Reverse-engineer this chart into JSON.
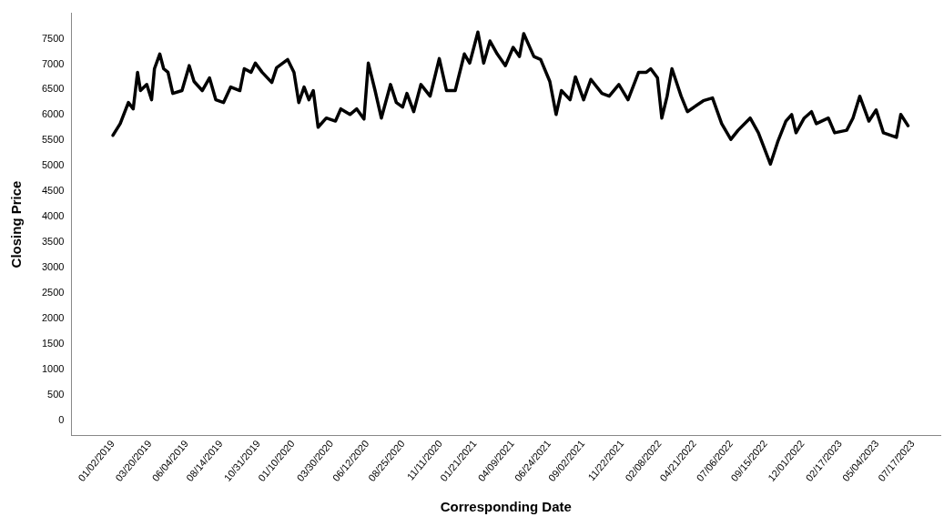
{
  "chart_data": {
    "type": "line",
    "xlabel": "Corresponding Date",
    "ylabel": "Closing Price",
    "xlim": [
      "2018-10-08",
      "2023-09-12"
    ],
    "xticks": [
      {
        "value": "2019-01-02",
        "label": "01/02/2019"
      },
      {
        "value": "2019-03-20",
        "label": "03/20/2019"
      },
      {
        "value": "2019-06-04",
        "label": "06/04/2019"
      },
      {
        "value": "2019-08-14",
        "label": "08/14/2019"
      },
      {
        "value": "2019-10-31",
        "label": "10/31/2019"
      },
      {
        "value": "2020-01-10",
        "label": "01/10/2020"
      },
      {
        "value": "2020-03-30",
        "label": "03/30/2020"
      },
      {
        "value": "2020-06-12",
        "label": "06/12/2020"
      },
      {
        "value": "2020-08-25",
        "label": "08/25/2020"
      },
      {
        "value": "2020-11-11",
        "label": "11/11/2020"
      },
      {
        "value": "2021-01-21",
        "label": "01/21/2021"
      },
      {
        "value": "2021-04-09",
        "label": "04/09/2021"
      },
      {
        "value": "2021-06-24",
        "label": "06/24/2021"
      },
      {
        "value": "2021-09-02",
        "label": "09/02/2021"
      },
      {
        "value": "2021-11-22",
        "label": "11/22/2021"
      },
      {
        "value": "2022-02-08",
        "label": "02/08/2022"
      },
      {
        "value": "2022-04-21",
        "label": "04/21/2022"
      },
      {
        "value": "2022-07-06",
        "label": "07/06/2022"
      },
      {
        "value": "2022-09-15",
        "label": "09/15/2022"
      },
      {
        "value": "2022-12-01",
        "label": "12/01/2022"
      },
      {
        "value": "2023-02-17",
        "label": "02/17/2023"
      },
      {
        "value": "2023-05-04",
        "label": "05/04/2023"
      },
      {
        "value": "2023-07-17",
        "label": "07/17/2023"
      }
    ],
    "ylim": [
      -300,
      8000
    ],
    "yticks": [
      0,
      500,
      1000,
      1500,
      2000,
      2500,
      3000,
      3500,
      4000,
      4500,
      5000,
      5500,
      6000,
      6500,
      7000,
      7500
    ],
    "grid": false,
    "legend": false,
    "marker": "none",
    "line_style": "solid",
    "series": [
      {
        "color": "#000000",
        "x": [
          "2019-01-02",
          "2019-01-17",
          "2019-02-03",
          "2019-02-13",
          "2019-02-22",
          "2019-02-28",
          "2019-03-13",
          "2019-03-23",
          "2019-03-29",
          "2019-04-09",
          "2019-04-17",
          "2019-04-26",
          "2019-05-06",
          "2019-05-25",
          "2019-06-09",
          "2019-06-19",
          "2019-07-06",
          "2019-07-21",
          "2019-08-03",
          "2019-08-19",
          "2019-09-03",
          "2019-09-22",
          "2019-10-01",
          "2019-10-15",
          "2019-10-24",
          "2019-11-07",
          "2019-11-27",
          "2019-12-07",
          "2019-12-30",
          "2020-01-12",
          "2020-01-22",
          "2020-02-02",
          "2020-02-12",
          "2020-02-21",
          "2020-03-02",
          "2020-03-19",
          "2020-04-07",
          "2020-04-18",
          "2020-05-07",
          "2020-05-21",
          "2020-06-05",
          "2020-06-14",
          "2020-06-28",
          "2020-07-11",
          "2020-07-30",
          "2020-08-11",
          "2020-08-24",
          "2020-09-02",
          "2020-09-16",
          "2020-10-01",
          "2020-10-20",
          "2020-11-08",
          "2020-11-23",
          "2020-12-11",
          "2020-12-30",
          "2021-01-10",
          "2021-01-27",
          "2021-02-08",
          "2021-02-21",
          "2021-03-08",
          "2021-03-25",
          "2021-04-10",
          "2021-04-23",
          "2021-05-02",
          "2021-05-23",
          "2021-06-06",
          "2021-06-25",
          "2021-07-08",
          "2021-07-19",
          "2021-08-06",
          "2021-08-17",
          "2021-09-03",
          "2021-09-18",
          "2021-10-11",
          "2021-10-26",
          "2021-11-15",
          "2021-12-04",
          "2021-12-26",
          "2022-01-11",
          "2022-01-20",
          "2022-02-03",
          "2022-02-12",
          "2022-02-23",
          "2022-03-05",
          "2022-03-24",
          "2022-04-06",
          "2022-05-09",
          "2022-05-28",
          "2022-06-16",
          "2022-07-05",
          "2022-07-20",
          "2022-08-14",
          "2022-08-31",
          "2022-09-25",
          "2022-10-10",
          "2022-10-27",
          "2022-11-08",
          "2022-11-17",
          "2022-12-04",
          "2022-12-19",
          "2022-12-29",
          "2023-01-23",
          "2023-02-05",
          "2023-03-02",
          "2023-03-15",
          "2023-03-29",
          "2023-04-17",
          "2023-05-02",
          "2023-05-17",
          "2023-06-13",
          "2023-06-22",
          "2023-07-07"
        ],
        "values": [
          5600,
          5830,
          6245,
          6120,
          6840,
          6480,
          6600,
          6300,
          6910,
          7200,
          6910,
          6840,
          6425,
          6480,
          6970,
          6660,
          6480,
          6730,
          6300,
          6245,
          6550,
          6480,
          6910,
          6840,
          7020,
          6840,
          6640,
          6930,
          7090,
          6840,
          6245,
          6550,
          6300,
          6480,
          5760,
          5940,
          5880,
          6120,
          6010,
          6120,
          5920,
          7020,
          6480,
          5940,
          6600,
          6245,
          6155,
          6425,
          6065,
          6600,
          6370,
          7110,
          6480,
          6480,
          7200,
          7020,
          7630,
          7020,
          7455,
          7200,
          6970,
          7330,
          7150,
          7600,
          7150,
          7090,
          6660,
          6010,
          6480,
          6300,
          6750,
          6300,
          6700,
          6425,
          6370,
          6600,
          6300,
          6840,
          6840,
          6910,
          6730,
          5940,
          6370,
          6910,
          6370,
          6065,
          6280,
          6335,
          5830,
          5520,
          5700,
          5940,
          5650,
          5035,
          5470,
          5880,
          6010,
          5650,
          5940,
          6065,
          5830,
          5940,
          5650,
          5700,
          5940,
          6370,
          5880,
          6100,
          5650,
          5560,
          6010,
          5790
        ]
      }
    ]
  }
}
